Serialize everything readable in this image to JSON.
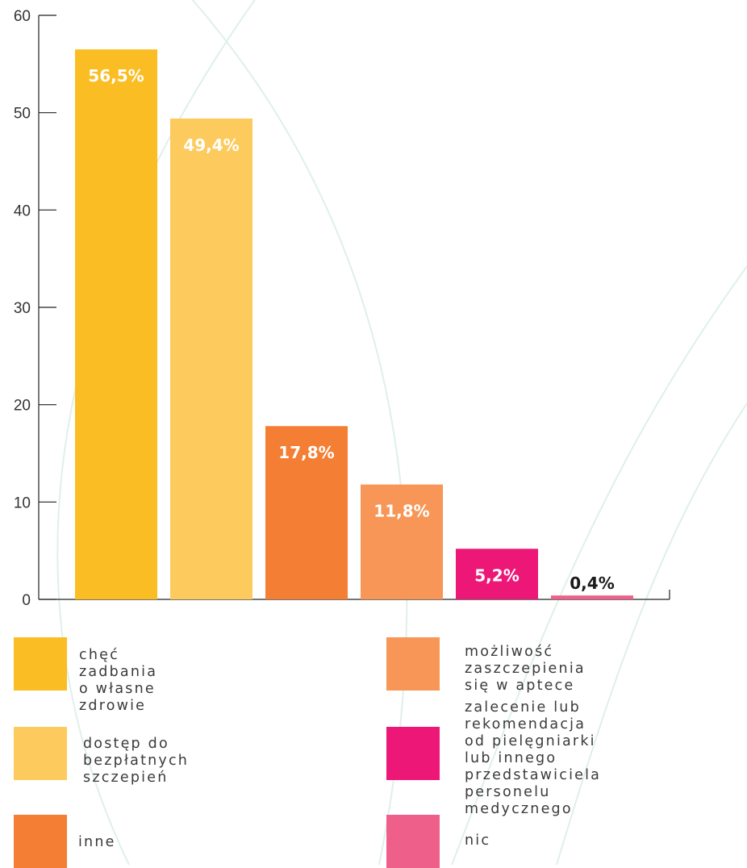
{
  "chart_data": {
    "type": "bar",
    "categories": [
      "chęć zadbania o własne zdrowie",
      "dostęp do bezpłatnych szczepień",
      "inne",
      "możliwość zaszczepienia się w aptece",
      "zalecenie lub rekomendacja od pielęgniarki lub innego przedstawiciela personelu medycznego",
      "nic"
    ],
    "values": [
      56.5,
      49.4,
      17.8,
      11.8,
      5.2,
      0.4
    ],
    "value_labels": [
      "56,5%",
      "49,4%",
      "17,8%",
      "11,8%",
      "5,2%",
      "0,4%"
    ],
    "colors": [
      "#FBBD24",
      "#FDCA5D",
      "#F47F34",
      "#F79656",
      "#ED1777",
      "#EE6089"
    ],
    "ylim": [
      0,
      60
    ],
    "yticks": [
      "0",
      "10",
      "20",
      "30",
      "40",
      "50",
      "60"
    ],
    "legend_position": "bottom",
    "grid": false
  },
  "legend": [
    {
      "label": "chęć zadbania o własne\nzdrowie",
      "color": "#FBBD24"
    },
    {
      "label": "dostęp do bezpłatnych\nszczepień",
      "color": "#FDCA5D"
    },
    {
      "label": "inne",
      "color": "#F47F34"
    },
    {
      "label": "możliwość zaszczepienia\nsię w aptece",
      "color": "#F79656"
    },
    {
      "label": "zalecenie lub rekomendacja\nod pielęgniarki lub innego\nprzedstawiciela personelu\nmedycznego",
      "color": "#ED1777"
    },
    {
      "label": "nic",
      "color": "#EE6089"
    }
  ]
}
